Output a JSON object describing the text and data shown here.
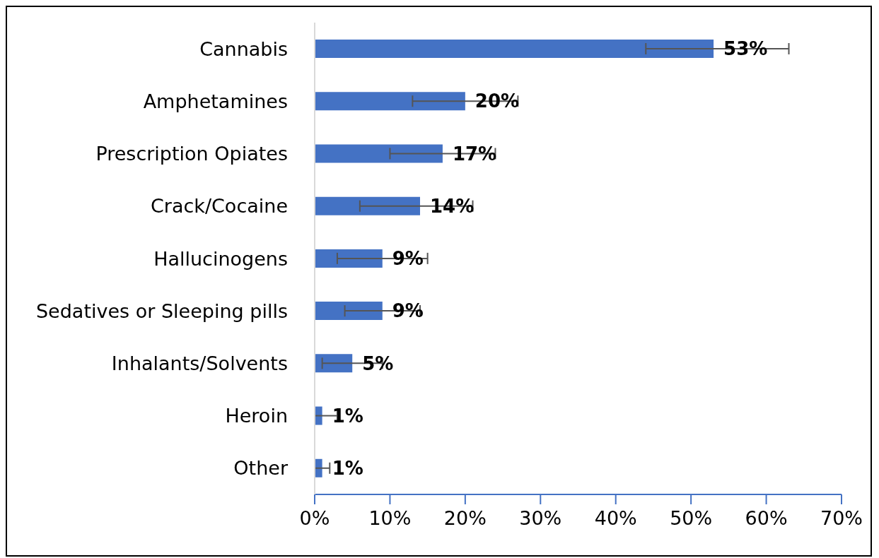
{
  "chart_data": {
    "type": "bar",
    "orientation": "horizontal",
    "categories": [
      "Cannabis",
      "Amphetamines",
      "Prescription Opiates",
      "Crack/Cocaine",
      "Hallucinogens",
      "Sedatives or Sleeping pills",
      "Inhalants/Solvents",
      "Heroin",
      "Other"
    ],
    "values": [
      53,
      20,
      17,
      14,
      9,
      9,
      5,
      1,
      1
    ],
    "value_labels": [
      "53%",
      "20%",
      "17%",
      "14%",
      "9%",
      "9%",
      "5%",
      "1%",
      "1%"
    ],
    "errors": [
      [
        44,
        63
      ],
      [
        13,
        27
      ],
      [
        10,
        24
      ],
      [
        6,
        21
      ],
      [
        3,
        15
      ],
      [
        4,
        14
      ],
      [
        1,
        9
      ],
      [
        0,
        3
      ],
      [
        0,
        2
      ]
    ],
    "color": "#4472c4",
    "xlim": [
      0,
      70
    ],
    "xticks": [
      {
        "value": 0,
        "label": "0%"
      },
      {
        "value": 10,
        "label": "10%"
      },
      {
        "value": 20,
        "label": "20%"
      },
      {
        "value": 30,
        "label": "30%"
      },
      {
        "value": 40,
        "label": "40%"
      },
      {
        "value": 50,
        "label": "50%"
      },
      {
        "value": 60,
        "label": "60%"
      },
      {
        "value": 70,
        "label": "70%"
      }
    ],
    "grid": false,
    "legend": false
  }
}
